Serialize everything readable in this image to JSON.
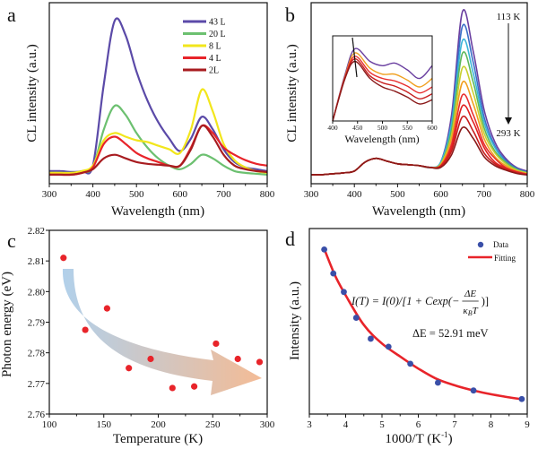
{
  "chart_data": [
    {
      "panel": "a",
      "type": "line",
      "xlabel": "Wavelength (nm)",
      "ylabel": "CL intensity (a.u.)",
      "xlim": [
        300,
        800
      ],
      "ylim": [
        0,
        1
      ],
      "xticks": [
        300,
        400,
        500,
        600,
        700,
        800
      ],
      "yticks_shown": false,
      "legend_placement": "top-right",
      "x": [
        300,
        325,
        350,
        375,
        400,
        425,
        450,
        475,
        500,
        525,
        550,
        575,
        600,
        625,
        650,
        675,
        700,
        725,
        750,
        775,
        800
      ],
      "series": [
        {
          "name": "43 L",
          "color": "#5b4aa8",
          "values": [
            0.07,
            0.07,
            0.065,
            0.07,
            0.1,
            0.55,
            0.9,
            0.82,
            0.62,
            0.46,
            0.34,
            0.25,
            0.18,
            0.25,
            0.37,
            0.3,
            0.19,
            0.12,
            0.09,
            0.08,
            0.07
          ]
        },
        {
          "name": "20 L",
          "color": "#6cc070",
          "values": [
            0.06,
            0.06,
            0.06,
            0.065,
            0.09,
            0.3,
            0.43,
            0.38,
            0.28,
            0.2,
            0.14,
            0.1,
            0.08,
            0.11,
            0.16,
            0.14,
            0.1,
            0.07,
            0.06,
            0.055,
            0.05
          ]
        },
        {
          "name": "8 L",
          "color": "#f2e61c",
          "values": [
            0.06,
            0.06,
            0.06,
            0.07,
            0.1,
            0.24,
            0.28,
            0.26,
            0.24,
            0.23,
            0.21,
            0.19,
            0.17,
            0.3,
            0.52,
            0.4,
            0.22,
            0.13,
            0.09,
            0.07,
            0.06
          ]
        },
        {
          "name": "4 L",
          "color": "#e8242a",
          "values": [
            0.05,
            0.05,
            0.05,
            0.06,
            0.09,
            0.22,
            0.26,
            0.22,
            0.17,
            0.14,
            0.12,
            0.1,
            0.1,
            0.2,
            0.32,
            0.28,
            0.2,
            0.16,
            0.13,
            0.11,
            0.1
          ]
        },
        {
          "name": "2L",
          "color": "#a81c20",
          "values": [
            0.05,
            0.05,
            0.05,
            0.06,
            0.08,
            0.14,
            0.16,
            0.14,
            0.12,
            0.11,
            0.105,
            0.1,
            0.1,
            0.19,
            0.32,
            0.26,
            0.16,
            0.1,
            0.08,
            0.07,
            0.065
          ]
        }
      ]
    },
    {
      "panel": "b",
      "type": "line",
      "xlabel": "Wavelength (nm)",
      "ylabel": "CL intensity (a.u.)",
      "xlim": [
        300,
        800
      ],
      "ylim": [
        0,
        1
      ],
      "xticks": [
        300,
        400,
        500,
        600,
        700,
        800
      ],
      "yticks_shown": false,
      "annotations": {
        "top": "113 K",
        "bottom": "293 K"
      },
      "x": [
        300,
        325,
        350,
        375,
        400,
        425,
        450,
        475,
        500,
        525,
        550,
        575,
        600,
        625,
        650,
        675,
        700,
        725,
        750,
        775,
        800
      ],
      "series": [
        {
          "color": "#6a3fa0",
          "values": [
            0.05,
            0.05,
            0.055,
            0.06,
            0.07,
            0.12,
            0.14,
            0.125,
            0.11,
            0.105,
            0.1,
            0.09,
            0.12,
            0.38,
            0.95,
            0.73,
            0.41,
            0.23,
            0.14,
            0.09,
            0.07
          ]
        },
        {
          "color": "#3a6fc8",
          "values": [
            0.05,
            0.05,
            0.055,
            0.06,
            0.07,
            0.12,
            0.14,
            0.125,
            0.11,
            0.105,
            0.1,
            0.09,
            0.12,
            0.35,
            0.87,
            0.67,
            0.37,
            0.21,
            0.13,
            0.085,
            0.065
          ]
        },
        {
          "color": "#3bb5d8",
          "values": [
            0.05,
            0.05,
            0.055,
            0.06,
            0.07,
            0.12,
            0.14,
            0.125,
            0.11,
            0.105,
            0.1,
            0.09,
            0.12,
            0.33,
            0.79,
            0.61,
            0.34,
            0.2,
            0.12,
            0.08,
            0.06
          ]
        },
        {
          "color": "#5cb85c",
          "values": [
            0.05,
            0.05,
            0.055,
            0.06,
            0.07,
            0.12,
            0.14,
            0.125,
            0.11,
            0.105,
            0.1,
            0.09,
            0.11,
            0.3,
            0.72,
            0.56,
            0.31,
            0.18,
            0.12,
            0.08,
            0.06
          ]
        },
        {
          "color": "#c8d030",
          "values": [
            0.05,
            0.05,
            0.055,
            0.06,
            0.07,
            0.12,
            0.14,
            0.125,
            0.11,
            0.105,
            0.1,
            0.09,
            0.11,
            0.27,
            0.64,
            0.5,
            0.28,
            0.17,
            0.11,
            0.075,
            0.06
          ]
        },
        {
          "color": "#f0a020",
          "values": [
            0.05,
            0.05,
            0.055,
            0.06,
            0.07,
            0.12,
            0.14,
            0.125,
            0.11,
            0.105,
            0.1,
            0.09,
            0.105,
            0.25,
            0.56,
            0.44,
            0.25,
            0.15,
            0.1,
            0.07,
            0.055
          ]
        },
        {
          "color": "#e83030",
          "values": [
            0.05,
            0.05,
            0.055,
            0.06,
            0.07,
            0.12,
            0.14,
            0.125,
            0.11,
            0.105,
            0.1,
            0.09,
            0.1,
            0.22,
            0.49,
            0.38,
            0.22,
            0.14,
            0.09,
            0.067,
            0.053
          ]
        },
        {
          "color": "#e02020",
          "values": [
            0.05,
            0.05,
            0.055,
            0.06,
            0.07,
            0.12,
            0.14,
            0.125,
            0.11,
            0.105,
            0.1,
            0.09,
            0.1,
            0.2,
            0.43,
            0.34,
            0.2,
            0.12,
            0.087,
            0.064,
            0.05
          ]
        },
        {
          "color": "#c81e1e",
          "values": [
            0.05,
            0.05,
            0.055,
            0.06,
            0.07,
            0.12,
            0.14,
            0.125,
            0.11,
            0.105,
            0.1,
            0.09,
            0.095,
            0.18,
            0.37,
            0.29,
            0.17,
            0.11,
            0.08,
            0.06,
            0.05
          ]
        },
        {
          "color": "#8b1a1a",
          "values": [
            0.05,
            0.05,
            0.055,
            0.06,
            0.07,
            0.12,
            0.14,
            0.125,
            0.11,
            0.105,
            0.1,
            0.09,
            0.09,
            0.16,
            0.31,
            0.25,
            0.15,
            0.1,
            0.075,
            0.057,
            0.048
          ]
        }
      ],
      "inset": {
        "type": "line",
        "xlabel": "Wavelength (nm)",
        "xlim": [
          400,
          600
        ],
        "ylim": [
          0,
          1
        ],
        "xticks": [
          400,
          450,
          500,
          550,
          600
        ],
        "x": [
          400,
          425,
          445,
          475,
          500,
          525,
          550,
          575,
          600
        ],
        "series": [
          {
            "color": "#6a3fa0",
            "values": [
              0.0,
              0.55,
              0.85,
              0.7,
              0.65,
              0.68,
              0.6,
              0.5,
              0.65
            ]
          },
          {
            "color": "#f0a020",
            "values": [
              0.0,
              0.53,
              0.8,
              0.62,
              0.55,
              0.55,
              0.48,
              0.4,
              0.5
            ]
          },
          {
            "color": "#e83030",
            "values": [
              0.0,
              0.52,
              0.76,
              0.57,
              0.5,
              0.47,
              0.41,
              0.33,
              0.4
            ]
          },
          {
            "color": "#c81e1e",
            "values": [
              0.0,
              0.51,
              0.73,
              0.53,
              0.45,
              0.41,
              0.34,
              0.26,
              0.32
            ]
          },
          {
            "color": "#8b1a1a",
            "values": [
              0.0,
              0.5,
              0.7,
              0.5,
              0.4,
              0.35,
              0.28,
              0.2,
              0.25
            ]
          }
        ]
      }
    },
    {
      "panel": "c",
      "type": "scatter",
      "xlabel": "Temperature (K)",
      "ylabel": "Photon energy (eV)",
      "xlim": [
        100,
        300
      ],
      "ylim": [
        2.76,
        2.82
      ],
      "xticks": [
        100,
        150,
        200,
        250,
        300
      ],
      "yticks": [
        2.76,
        2.77,
        2.78,
        2.79,
        2.8,
        2.81,
        2.82
      ],
      "ytick_labels": [
        "2.76",
        "2.77",
        "2.78",
        "2.79",
        "2.80",
        "2.81",
        "2.82"
      ],
      "point_color": "#e8242a",
      "arrow_colors": [
        "#a9cbe8",
        "#f2b48a"
      ],
      "x": [
        113,
        133,
        153,
        173,
        193,
        213,
        233,
        253,
        273,
        293
      ],
      "y": [
        2.811,
        2.7875,
        2.7945,
        2.775,
        2.778,
        2.7685,
        2.769,
        2.783,
        2.778,
        2.777
      ]
    },
    {
      "panel": "d",
      "type": "scatter",
      "xlabel": "1000/T (K",
      "xlabel_sup": "-1",
      "xlabel_end": ")",
      "ylabel": "Intensity (a.u.)",
      "xlim": [
        3,
        9
      ],
      "ylim": [
        0,
        1
      ],
      "xticks": [
        3,
        4,
        5,
        6,
        7,
        8,
        9
      ],
      "yticks_shown": false,
      "legend_placement": "top-right",
      "series": [
        {
          "name": "Data",
          "color": "#3a4fa8",
          "x": [
            3.41,
            3.66,
            3.95,
            4.29,
            4.69,
            5.18,
            5.78,
            6.54,
            7.52,
            8.85
          ],
          "y": [
            0.887,
            0.758,
            0.658,
            0.519,
            0.406,
            0.363,
            0.271,
            0.169,
            0.127,
            0.081
          ]
        },
        {
          "name": "Fitting",
          "color": "#e8242a",
          "x": [
            3.41,
            3.7,
            4.0,
            4.5,
            5.0,
            5.5,
            6.0,
            6.5,
            7.0,
            7.5,
            8.0,
            8.5,
            8.85
          ],
          "y": [
            0.89,
            0.75,
            0.64,
            0.48,
            0.38,
            0.31,
            0.245,
            0.19,
            0.155,
            0.128,
            0.107,
            0.09,
            0.08
          ]
        }
      ],
      "equation": {
        "left": "I(T) = I(0)/[1 + Cexp(−",
        "num": "ΔE",
        "den": "κ",
        "den_sub": "B",
        "den_end": "T",
        "right": ")]"
      },
      "annotation": "ΔE = 52.91 meV"
    }
  ]
}
